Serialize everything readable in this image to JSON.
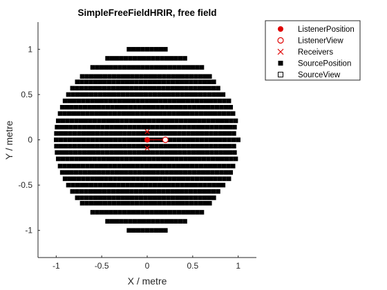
{
  "chart_data": {
    "type": "scatter",
    "title": "SimpleFreeFieldHRIR, free field",
    "xlabel": "X / metre",
    "ylabel": "Y / metre",
    "xlim": [
      -1.2,
      1.2
    ],
    "ylim": [
      -1.3,
      1.3
    ],
    "xticks": [
      -1,
      -0.5,
      0,
      0.5,
      1
    ],
    "xtick_labels": [
      "-1",
      "-0.5",
      "0",
      "0.5",
      "1"
    ],
    "yticks": [
      -1,
      -0.5,
      0,
      0.5,
      1
    ],
    "ytick_labels": [
      "-1",
      "-0.5",
      "0",
      "0.5",
      "1"
    ],
    "grid": false,
    "legend_position": "outside-right-top",
    "legend": [
      {
        "label": "ListenerPosition",
        "marker": "filled-circle",
        "color": "#e00000"
      },
      {
        "label": "ListenerView",
        "marker": "open-circle",
        "color": "#e00000"
      },
      {
        "label": "Receivers",
        "marker": "x",
        "color": "#e00000"
      },
      {
        "label": "SourcePosition",
        "marker": "filled-square",
        "color": "#000000"
      },
      {
        "label": "SourceView",
        "marker": "open-square",
        "color": "#000000"
      }
    ],
    "listener_position": {
      "x": 0,
      "y": 0
    },
    "listener_view": {
      "x": 0.2,
      "y": 0
    },
    "receivers": [
      {
        "x": 0,
        "y": 0.09
      },
      {
        "x": 0,
        "y": -0.09
      }
    ],
    "source_position": {
      "radius": 1.0,
      "description": "Sources on a unit sphere, projected onto X-Y plane; rows of constant Y with dense points in X",
      "rows_y": [
        -1.0,
        -0.9,
        -0.8,
        -0.7,
        -0.64,
        -0.57,
        -0.5,
        -0.43,
        -0.36,
        -0.29,
        -0.21,
        -0.14,
        -0.07,
        0,
        0.07,
        0.14,
        0.21,
        0.29,
        0.36,
        0.43,
        0.5,
        0.57,
        0.64,
        0.7,
        0.8,
        0.9,
        1.0
      ],
      "x_step": 0.05
    }
  }
}
